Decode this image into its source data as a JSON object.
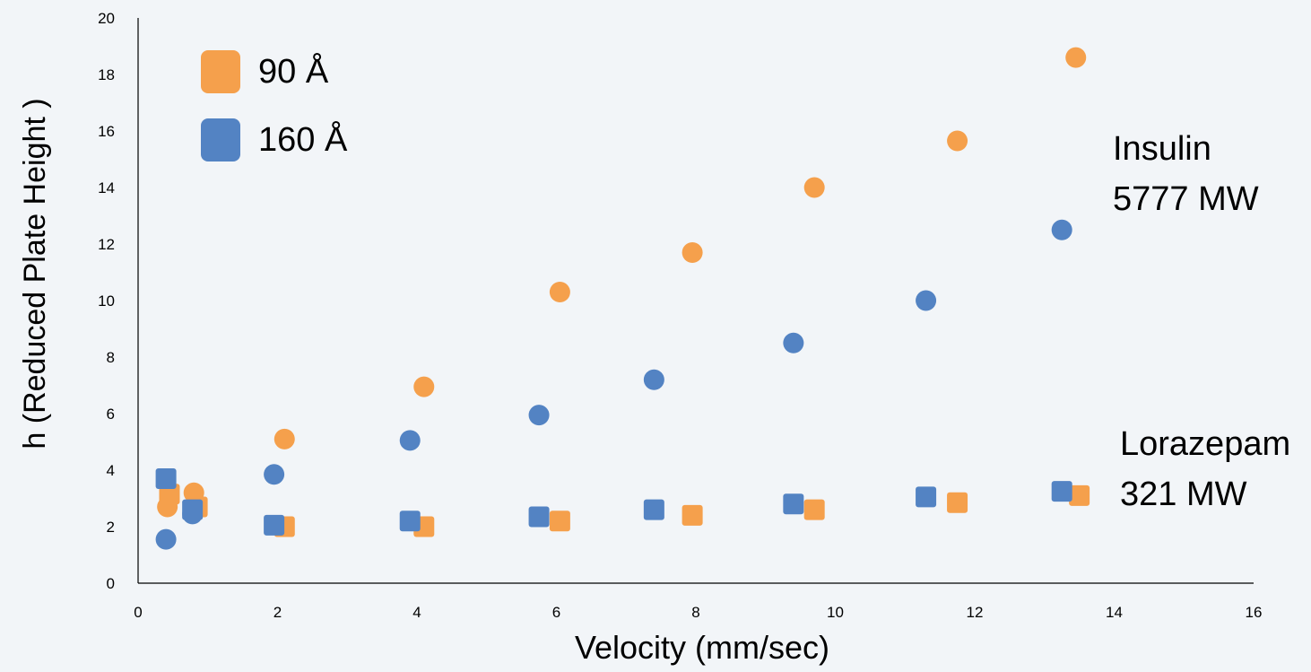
{
  "colors": {
    "orange": "#f5a04c",
    "blue": "#5383c3",
    "axis": "#000000",
    "background": "#f2f5f8"
  },
  "chart_data": {
    "type": "scatter",
    "xlabel": "Velocity (mm/sec)",
    "ylabel": "h (Reduced Plate Height )",
    "xlim": [
      0,
      16
    ],
    "ylim": [
      0,
      20
    ],
    "xticks": [
      0,
      2,
      4,
      6,
      8,
      10,
      12,
      14,
      16
    ],
    "yticks": [
      0,
      2,
      4,
      6,
      8,
      10,
      12,
      14,
      16,
      18,
      20
    ],
    "grid": false,
    "legend": {
      "placement": "top-left",
      "entries": [
        {
          "label": "90 Å",
          "color": "#f5a04c",
          "marker": "square"
        },
        {
          "label": "160 Å",
          "color": "#5383c3",
          "marker": "square"
        }
      ]
    },
    "annotations": [
      {
        "lines": [
          "Insulin",
          "5777 MW"
        ]
      },
      {
        "lines": [
          "Lorazepam",
          "321 MW"
        ]
      }
    ],
    "series": [
      {
        "pore": "90 Å",
        "analyte": "Insulin",
        "marker": "circle",
        "color": "#f5a04c",
        "x": [
          0.42,
          0.8,
          2.1,
          4.1,
          6.05,
          7.95,
          9.7,
          11.75,
          13.45
        ],
        "y": [
          2.7,
          3.2,
          5.1,
          6.95,
          10.3,
          11.7,
          14.0,
          15.65,
          18.6
        ]
      },
      {
        "pore": "160 Å",
        "analyte": "Insulin",
        "marker": "circle",
        "color": "#5383c3",
        "x": [
          0.4,
          0.78,
          1.95,
          3.9,
          5.75,
          7.4,
          9.4,
          11.3,
          13.25
        ],
        "y": [
          1.55,
          2.45,
          3.85,
          5.05,
          5.95,
          7.2,
          8.5,
          10.0,
          12.5
        ]
      },
      {
        "pore": "90 Å",
        "analyte": "Lorazepam",
        "marker": "square",
        "color": "#f5a04c",
        "x": [
          0.45,
          0.85,
          2.1,
          4.1,
          6.05,
          7.95,
          9.7,
          11.75,
          13.5
        ],
        "y": [
          3.15,
          2.7,
          2.0,
          2.0,
          2.2,
          2.4,
          2.6,
          2.85,
          3.1
        ]
      },
      {
        "pore": "160 Å",
        "analyte": "Lorazepam",
        "marker": "square",
        "color": "#5383c3",
        "x": [
          0.4,
          0.78,
          1.95,
          3.9,
          5.75,
          7.4,
          9.4,
          11.3,
          13.25
        ],
        "y": [
          3.7,
          2.6,
          2.05,
          2.2,
          2.35,
          2.6,
          2.8,
          3.05,
          3.25
        ]
      }
    ]
  }
}
